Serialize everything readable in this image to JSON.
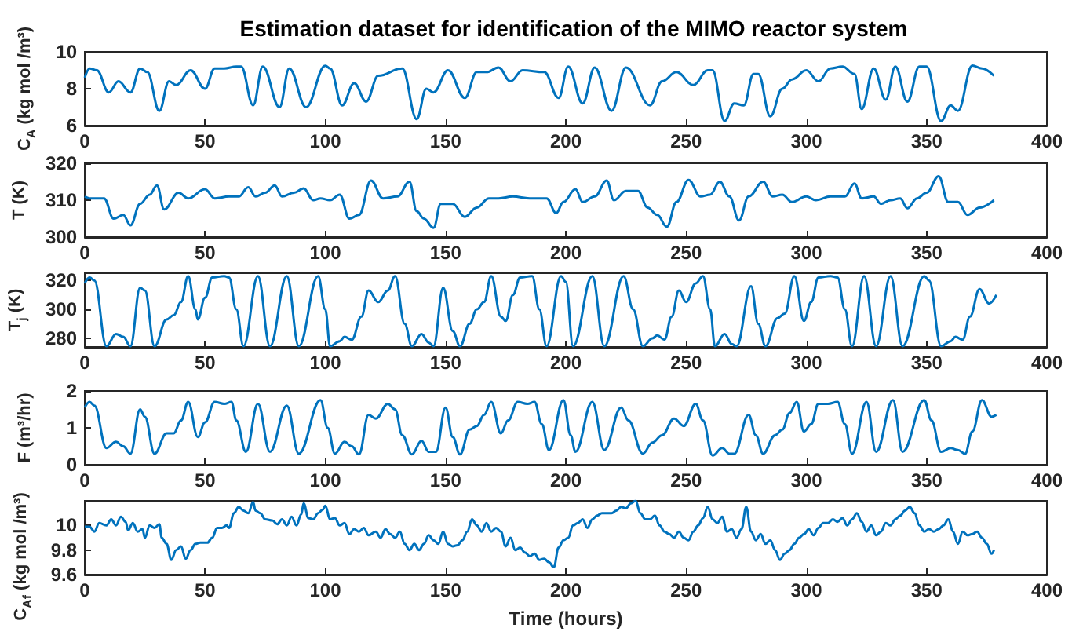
{
  "chart_data": [
    {
      "type": "line",
      "title": "Estimation dataset for identification of the MIMO reactor system",
      "ylabel": "C$_{A}$ (kg mol /m³)",
      "xlim": [
        0,
        400
      ],
      "xticks": [
        0,
        50,
        100,
        150,
        200,
        250,
        300,
        350,
        400
      ],
      "ylim": [
        6,
        10
      ],
      "yticks": [
        6,
        8,
        10
      ],
      "series": [
        {
          "color": "#0072bd",
          "x": [
            0,
            2,
            5,
            10,
            14,
            19,
            23,
            26,
            31,
            35,
            38,
            44,
            50,
            54,
            58,
            63,
            65,
            70,
            74,
            81,
            85,
            92,
            100,
            102,
            107,
            112,
            117,
            122,
            132,
            138,
            142,
            145,
            151,
            158,
            163,
            167,
            172,
            177,
            182,
            191,
            197,
            201,
            207,
            212,
            219,
            225,
            235,
            240,
            246,
            253,
            259,
            261,
            266,
            270,
            274,
            278,
            280,
            285,
            290,
            294,
            300,
            305,
            310,
            315,
            320,
            323,
            328,
            333,
            337,
            342,
            347,
            350,
            356,
            360,
            363,
            369,
            373,
            378
          ],
          "values": [
            8.6,
            9.1,
            9.0,
            7.8,
            8.4,
            7.8,
            9.1,
            8.9,
            6.8,
            8.4,
            8.2,
            9.0,
            8.0,
            9.1,
            9.1,
            9.2,
            9.2,
            7.1,
            9.2,
            7.0,
            9.1,
            7.0,
            9.25,
            9.1,
            7.1,
            8.3,
            7.3,
            8.7,
            9.1,
            6.35,
            8.0,
            7.8,
            9.0,
            7.5,
            8.9,
            8.9,
            9.15,
            8.4,
            9.0,
            8.9,
            7.5,
            9.2,
            7.2,
            9.15,
            6.8,
            9.15,
            7.1,
            8.4,
            8.9,
            8.2,
            9.0,
            9.0,
            6.25,
            7.2,
            7.1,
            8.8,
            8.8,
            6.5,
            8.0,
            8.5,
            9.0,
            8.4,
            9.1,
            9.2,
            8.8,
            6.9,
            9.1,
            7.4,
            9.2,
            7.3,
            9.2,
            9.2,
            6.25,
            7.1,
            6.8,
            9.25,
            9.1,
            8.7
          ]
        }
      ]
    },
    {
      "type": "line",
      "ylabel": "T (K)",
      "xlim": [
        0,
        400
      ],
      "xticks": [
        0,
        50,
        100,
        150,
        200,
        250,
        300,
        350,
        400
      ],
      "ylim": [
        300,
        320
      ],
      "yticks": [
        300,
        310,
        320
      ],
      "series": [
        {
          "color": "#0072bd",
          "x": [
            0,
            2,
            8,
            12,
            16,
            19,
            23,
            27,
            30,
            33,
            39,
            43,
            50,
            54,
            60,
            64,
            68,
            71,
            75,
            79,
            82,
            87,
            91,
            95,
            98,
            102,
            106,
            110,
            114,
            119,
            124,
            130,
            135,
            138,
            141,
            145,
            148,
            153,
            158,
            163,
            168,
            172,
            178,
            185,
            192,
            196,
            199,
            204,
            207,
            212,
            217,
            220,
            225,
            230,
            234,
            238,
            242,
            246,
            251,
            256,
            260,
            264,
            268,
            272,
            276,
            282,
            286,
            290,
            294,
            300,
            304,
            310,
            316,
            320,
            323,
            328,
            331,
            335,
            339,
            342,
            346,
            350,
            355,
            359,
            363,
            367,
            372,
            378
          ],
          "values": [
            311,
            310.5,
            310.5,
            305,
            306,
            303.2,
            309,
            311.5,
            314,
            307.5,
            312,
            310.5,
            313,
            310.5,
            311,
            311,
            313.5,
            311,
            312,
            314,
            311,
            312,
            313.2,
            310,
            310.5,
            310,
            311.5,
            305,
            306,
            315.3,
            310.5,
            311,
            315,
            307,
            305,
            302.5,
            309,
            309,
            305.5,
            308,
            310.5,
            310.5,
            311,
            310.5,
            310.5,
            306.5,
            309.5,
            313,
            309.5,
            311,
            315.3,
            310,
            312.5,
            312.5,
            308,
            306,
            302.8,
            309.5,
            315.5,
            311,
            311.5,
            315,
            311,
            304.5,
            311,
            315,
            311,
            311.5,
            309.5,
            311,
            310,
            311,
            311,
            314.5,
            310.5,
            311,
            309,
            310,
            310.5,
            307.8,
            310.5,
            312,
            316.5,
            309.5,
            309.5,
            306,
            308,
            310
          ]
        }
      ]
    },
    {
      "type": "line",
      "ylabel": "T$_{j}$ (K)",
      "xlim": [
        0,
        400
      ],
      "xticks": [
        0,
        50,
        100,
        150,
        200,
        250,
        300,
        350,
        400
      ],
      "ylim": [
        274,
        325
      ],
      "yticks": [
        280,
        300,
        320
      ],
      "series": [
        {
          "color": "#0072bd",
          "x": [
            0,
            2,
            4,
            9,
            13,
            16,
            19,
            23,
            25,
            29,
            34,
            37,
            40,
            43,
            46,
            47,
            50,
            53,
            58,
            60,
            63,
            66,
            72,
            77,
            84,
            89,
            97,
            100,
            102,
            106,
            108,
            111,
            115,
            118,
            122,
            126,
            129,
            133,
            136,
            140,
            143,
            145,
            149,
            153,
            156,
            160,
            163,
            166,
            169,
            173,
            175,
            178,
            181,
            186,
            189,
            192,
            198,
            200,
            203,
            211,
            216,
            224,
            228,
            232,
            236,
            238,
            241,
            244,
            247,
            250,
            254,
            257,
            260,
            262,
            266,
            269,
            271,
            277,
            280,
            283,
            288,
            291,
            295,
            299,
            302,
            305,
            310,
            313,
            316,
            319,
            324,
            329,
            335,
            340,
            349,
            351,
            356,
            360,
            362,
            365,
            368,
            372,
            376,
            379
          ],
          "values": [
            318,
            322,
            320,
            274.5,
            283,
            281,
            274.5,
            315,
            313,
            274.5,
            293,
            296,
            305,
            323,
            300,
            293,
            308,
            322,
            323,
            322,
            300,
            274.5,
            323,
            274.5,
            323,
            274.5,
            323,
            300,
            274.5,
            278,
            281,
            279,
            295,
            313,
            305,
            313,
            323,
            290,
            274.5,
            283,
            277,
            274.5,
            315,
            285,
            274.5,
            290,
            300,
            305,
            323,
            295,
            292,
            310,
            322,
            323,
            300,
            274.5,
            323,
            319,
            274.5,
            323,
            274.5,
            323,
            300,
            274.5,
            280,
            282,
            279,
            295,
            313,
            305,
            318,
            323,
            300,
            274.5,
            283,
            276,
            274.5,
            316,
            290,
            274.5,
            294,
            297,
            323,
            292,
            305,
            322,
            323,
            322,
            300,
            274.5,
            323,
            274.5,
            323,
            274.5,
            323,
            320,
            274.5,
            278,
            281,
            279,
            295,
            314,
            304,
            310
          ]
        }
      ]
    },
    {
      "type": "line",
      "ylabel": "F (m³/hr)",
      "xlim": [
        0,
        400
      ],
      "xticks": [
        0,
        50,
        100,
        150,
        200,
        250,
        300,
        350,
        400
      ],
      "ylim": [
        0,
        2
      ],
      "yticks": [
        0,
        1,
        2
      ],
      "series": [
        {
          "color": "#0072bd",
          "x": [
            0,
            2,
            4,
            9,
            13,
            16,
            19,
            23,
            25,
            29,
            34,
            37,
            40,
            43,
            47,
            50,
            54,
            58,
            61,
            63,
            67,
            72,
            77,
            84,
            89,
            98,
            101,
            104,
            108,
            111,
            114,
            118,
            121,
            126,
            129,
            132,
            136,
            140,
            143,
            146,
            150,
            153,
            156,
            160,
            163,
            166,
            169,
            173,
            176,
            180,
            184,
            187,
            190,
            193,
            199,
            202,
            204,
            211,
            216,
            223,
            226,
            232,
            236,
            240,
            245,
            249,
            254,
            257,
            261,
            265,
            268,
            270,
            276,
            279,
            282,
            287,
            290,
            293,
            296,
            299,
            302,
            305,
            309,
            313,
            316,
            319,
            325,
            329,
            336,
            340,
            349,
            352,
            356,
            360,
            363,
            366,
            369,
            373,
            377,
            379
          ],
          "values": [
            1.55,
            1.7,
            1.6,
            0.45,
            0.62,
            0.5,
            0.3,
            1.5,
            1.3,
            0.3,
            0.85,
            0.85,
            1.2,
            1.7,
            0.75,
            1.15,
            1.7,
            1.65,
            1.7,
            1.2,
            0.35,
            1.65,
            0.35,
            1.6,
            0.3,
            1.75,
            1.0,
            0.3,
            0.62,
            0.5,
            0.28,
            1.35,
            1.25,
            1.65,
            1.5,
            0.8,
            0.28,
            0.65,
            0.35,
            0.35,
            1.55,
            0.75,
            0.28,
            0.95,
            1.05,
            1.35,
            1.7,
            0.85,
            1.2,
            1.7,
            1.65,
            1.7,
            1.1,
            0.4,
            1.75,
            0.8,
            0.35,
            1.7,
            0.4,
            1.55,
            1.2,
            0.3,
            0.6,
            0.8,
            1.25,
            1.05,
            1.65,
            1.2,
            0.25,
            0.45,
            0.3,
            0.3,
            1.35,
            0.8,
            0.3,
            0.8,
            0.95,
            1.4,
            1.7,
            0.9,
            1.1,
            1.65,
            1.65,
            1.7,
            1.1,
            0.3,
            1.7,
            0.35,
            1.75,
            0.35,
            1.75,
            1.2,
            0.35,
            0.45,
            0.4,
            0.3,
            0.9,
            1.75,
            1.3,
            1.35
          ]
        }
      ]
    },
    {
      "type": "line",
      "ylabel": "C$_{Af}$ (kg mol /m³)",
      "xlabel": "Time (hours)",
      "xlim": [
        0,
        400
      ],
      "xticks": [
        0,
        50,
        100,
        150,
        200,
        250,
        300,
        350,
        400
      ],
      "ylim": [
        9.6,
        10.2
      ],
      "yticks": [
        9.6,
        9.8,
        10
      ],
      "series": [
        {
          "color": "#0072bd",
          "x": [
            0,
            2,
            4,
            6,
            9,
            11,
            13,
            15,
            17,
            18,
            20,
            22,
            24,
            25,
            27,
            29,
            31,
            32,
            34,
            36,
            38,
            40,
            42,
            44,
            46,
            48,
            51,
            53,
            55,
            57,
            59,
            60,
            62,
            64,
            66,
            68,
            70,
            71,
            73,
            75,
            78,
            80,
            82,
            84,
            86,
            88,
            90,
            91,
            93,
            95,
            97,
            99,
            100,
            102,
            104,
            106,
            108,
            110,
            112,
            114,
            116,
            118,
            121,
            123,
            125,
            127,
            129,
            131,
            133,
            135,
            137,
            139,
            141,
            143,
            145,
            147,
            149,
            151,
            153,
            155,
            157,
            159,
            161,
            163,
            165,
            167,
            169,
            171,
            173,
            175,
            177,
            179,
            181,
            183,
            185,
            187,
            189,
            191,
            193,
            195,
            197,
            199,
            201,
            203,
            205,
            207,
            209,
            211,
            213,
            215,
            217,
            219,
            221,
            223,
            225,
            227,
            229,
            231,
            233,
            235,
            237,
            239,
            241,
            243,
            245,
            247,
            249,
            251,
            253,
            255,
            257,
            259,
            261,
            263,
            265,
            267,
            269,
            271,
            273,
            275,
            277,
            279,
            281,
            283,
            285,
            287,
            289,
            291,
            293,
            295,
            297,
            299,
            301,
            303,
            305,
            307,
            309,
            311,
            313,
            315,
            317,
            319,
            321,
            323,
            325,
            327,
            329,
            331,
            333,
            335,
            337,
            339,
            341,
            343,
            345,
            347,
            349,
            351,
            353,
            355,
            357,
            359,
            361,
            363,
            365,
            367,
            369,
            371,
            373,
            375,
            377,
            378
          ],
          "values": [
            9.99,
            9.99,
            9.95,
            10.02,
            10.0,
            10.05,
            10.0,
            10.07,
            10.03,
            9.96,
            10.02,
            9.95,
            9.97,
            9.9,
            10.0,
            9.98,
            10.01,
            9.9,
            9.85,
            9.72,
            9.8,
            9.83,
            9.73,
            9.8,
            9.85,
            9.86,
            9.86,
            9.9,
            9.98,
            9.98,
            10.0,
            9.98,
            10.1,
            10.15,
            10.12,
            10.1,
            10.19,
            10.12,
            10.1,
            10.05,
            10.04,
            10.01,
            10.05,
            10.0,
            10.07,
            10.0,
            10.09,
            10.18,
            10.06,
            10.05,
            10.1,
            10.13,
            10.16,
            10.05,
            10.06,
            10.0,
            10.02,
            9.93,
            9.97,
            9.95,
            9.98,
            9.92,
            9.95,
            9.9,
            9.97,
            9.93,
            9.9,
            9.95,
            9.85,
            9.8,
            9.85,
            9.8,
            9.85,
            9.92,
            9.88,
            9.85,
            9.95,
            9.85,
            9.83,
            9.84,
            9.88,
            9.95,
            10.05,
            10.0,
            9.95,
            10.02,
            9.95,
            9.98,
            9.95,
            9.83,
            9.9,
            9.8,
            9.82,
            9.78,
            9.75,
            9.77,
            9.72,
            9.73,
            9.7,
            9.66,
            9.82,
            9.88,
            9.9,
            10.0,
            10.02,
            10.05,
            9.98,
            10.05,
            10.08,
            10.1,
            10.1,
            10.1,
            10.12,
            10.15,
            10.14,
            10.18,
            10.2,
            10.1,
            10.05,
            10.05,
            10.08,
            10.0,
            9.95,
            9.93,
            9.9,
            9.95,
            9.9,
            9.88,
            9.95,
            10.0,
            10.06,
            10.15,
            10.05,
            10.02,
            10.07,
            9.95,
            9.97,
            9.9,
            9.97,
            10.15,
            9.95,
            9.88,
            9.93,
            9.85,
            9.88,
            9.8,
            9.72,
            9.77,
            9.8,
            9.85,
            9.9,
            9.93,
            9.97,
            9.92,
            9.98,
            10.02,
            10.02,
            10.05,
            10.03,
            10.06,
            10.0,
            10.05,
            10.1,
            10.03,
            9.95,
            10.0,
            9.92,
            9.95,
            10.02,
            10.0,
            10.05,
            10.08,
            10.12,
            10.15,
            10.1,
            10.0,
            9.95,
            9.97,
            9.95,
            9.97,
            10.0,
            10.05,
            9.95,
            9.85,
            9.95,
            9.92,
            9.93,
            9.95,
            9.9,
            9.85,
            9.77,
            9.8
          ]
        }
      ]
    }
  ]
}
